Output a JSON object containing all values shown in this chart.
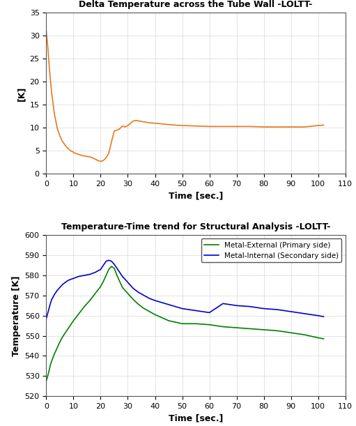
{
  "title1": "Delta Temperature across the Tube Wall -LOLTT-",
  "title2": "Temperature-Time trend for Structural Analysis -LOLTT-",
  "xlabel": "Time [sec.]",
  "ylabel1": "[K]",
  "ylabel2": "Temperature [K]",
  "orange_color": "#E87820",
  "green_color": "#008000",
  "blue_color": "#0000CC",
  "background_color": "#FFFFFF",
  "grid_color": "#888888",
  "legend_external": "Metal-External (Primary side)",
  "legend_internal": "Metal-Internal (Secondary side)",
  "plot1_xlim": [
    0,
    110
  ],
  "plot1_ylim": [
    0,
    35
  ],
  "plot1_xticks": [
    0,
    10,
    20,
    30,
    40,
    50,
    60,
    70,
    80,
    90,
    100,
    110
  ],
  "plot1_yticks": [
    0,
    5,
    10,
    15,
    20,
    25,
    30,
    35
  ],
  "plot2_xlim": [
    0,
    110
  ],
  "plot2_ylim": [
    520,
    600
  ],
  "plot2_xticks": [
    0,
    10,
    20,
    30,
    40,
    50,
    60,
    70,
    80,
    90,
    100,
    110
  ],
  "plot2_yticks": [
    520,
    530,
    540,
    550,
    560,
    570,
    580,
    590,
    600
  ],
  "delta_t_x": [
    0,
    0.5,
    1,
    1.5,
    2,
    3,
    4,
    5,
    6,
    7,
    8,
    9,
    10,
    11,
    12,
    13,
    14,
    15,
    16,
    17,
    18,
    19,
    20,
    21,
    22,
    23,
    24,
    25,
    26,
    27,
    28,
    29,
    30,
    31,
    32,
    33,
    34,
    35,
    36,
    37,
    38,
    40,
    42,
    45,
    50,
    55,
    60,
    65,
    70,
    75,
    80,
    85,
    90,
    95,
    100,
    102
  ],
  "delta_t_y": [
    31.0,
    28.0,
    24.0,
    20.5,
    17.5,
    13.0,
    10.0,
    8.2,
    7.0,
    6.2,
    5.5,
    5.0,
    4.7,
    4.4,
    4.2,
    4.0,
    3.9,
    3.8,
    3.7,
    3.5,
    3.2,
    2.9,
    2.7,
    2.9,
    3.5,
    4.5,
    7.0,
    9.3,
    9.5,
    9.8,
    10.4,
    10.2,
    10.5,
    11.0,
    11.5,
    11.6,
    11.5,
    11.4,
    11.3,
    11.2,
    11.1,
    11.0,
    10.9,
    10.7,
    10.5,
    10.4,
    10.3,
    10.3,
    10.3,
    10.3,
    10.2,
    10.2,
    10.2,
    10.2,
    10.5,
    10.6
  ],
  "ext_x": [
    0,
    0.5,
    1,
    1.5,
    2,
    3,
    4,
    5,
    6,
    7,
    8,
    9,
    10,
    12,
    14,
    16,
    18,
    20,
    21,
    22,
    23,
    24,
    25,
    26,
    27,
    28,
    29,
    30,
    32,
    34,
    36,
    38,
    40,
    45,
    50,
    55,
    60,
    65,
    70,
    75,
    80,
    85,
    90,
    95,
    100,
    102
  ],
  "ext_y": [
    527.5,
    530.0,
    532.5,
    535.5,
    537.5,
    541.0,
    544.0,
    547.0,
    549.5,
    551.5,
    553.5,
    555.5,
    557.5,
    561.0,
    564.5,
    567.5,
    571.0,
    574.5,
    577.0,
    580.0,
    583.0,
    584.5,
    583.5,
    580.0,
    577.0,
    574.0,
    572.5,
    571.0,
    568.0,
    565.5,
    563.5,
    562.0,
    560.5,
    557.5,
    556.0,
    556.0,
    555.5,
    554.5,
    554.0,
    553.5,
    553.0,
    552.5,
    551.5,
    550.5,
    549.0,
    548.5
  ],
  "int_x": [
    0,
    0.5,
    1,
    1.5,
    2,
    3,
    4,
    5,
    6,
    7,
    8,
    9,
    10,
    12,
    14,
    16,
    18,
    20,
    21,
    22,
    23,
    24,
    25,
    26,
    27,
    28,
    29,
    30,
    32,
    34,
    36,
    38,
    40,
    45,
    50,
    55,
    60,
    65,
    70,
    75,
    80,
    85,
    90,
    95,
    100,
    102
  ],
  "int_y": [
    558.5,
    561.0,
    563.5,
    566.0,
    568.0,
    570.5,
    572.5,
    574.0,
    575.5,
    576.5,
    577.5,
    578.0,
    578.5,
    579.5,
    580.0,
    580.5,
    581.5,
    583.0,
    585.0,
    587.0,
    587.5,
    587.0,
    585.5,
    583.5,
    581.5,
    579.5,
    578.0,
    576.5,
    573.5,
    571.5,
    570.0,
    568.5,
    567.5,
    565.5,
    563.5,
    562.5,
    561.5,
    566.0,
    565.0,
    564.5,
    563.5,
    563.0,
    562.0,
    561.0,
    560.0,
    559.5
  ]
}
